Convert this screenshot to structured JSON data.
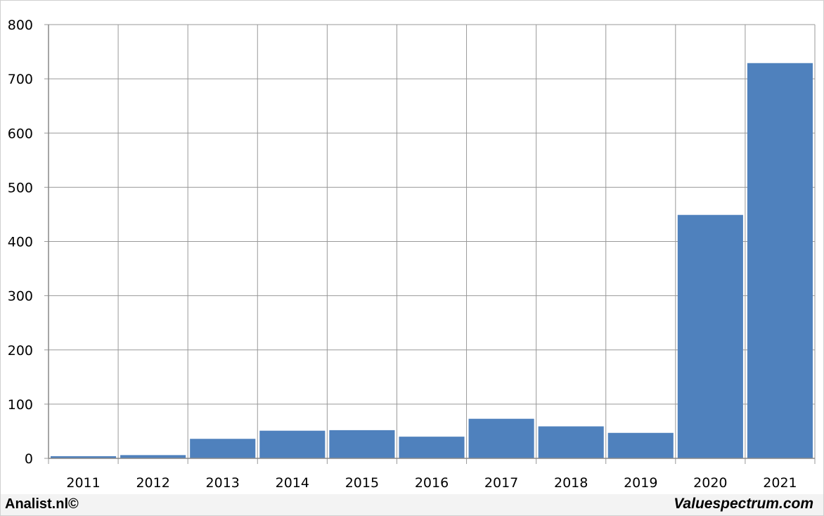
{
  "chart_data": {
    "type": "bar",
    "categories": [
      "2011",
      "2012",
      "2013",
      "2014",
      "2015",
      "2016",
      "2017",
      "2018",
      "2019",
      "2020",
      "2021"
    ],
    "values": [
      4,
      6,
      36,
      51,
      52,
      40,
      73,
      59,
      47,
      449,
      729
    ],
    "title": "",
    "xlabel": "",
    "ylabel": "",
    "ylim": [
      0,
      800
    ],
    "yticks": [
      0,
      100,
      200,
      300,
      400,
      500,
      600,
      700,
      800
    ],
    "grid": true,
    "bar_color": "#4f81bd"
  },
  "footer": {
    "left": "Analist.nl©",
    "right": "Valuespectrum.com"
  }
}
